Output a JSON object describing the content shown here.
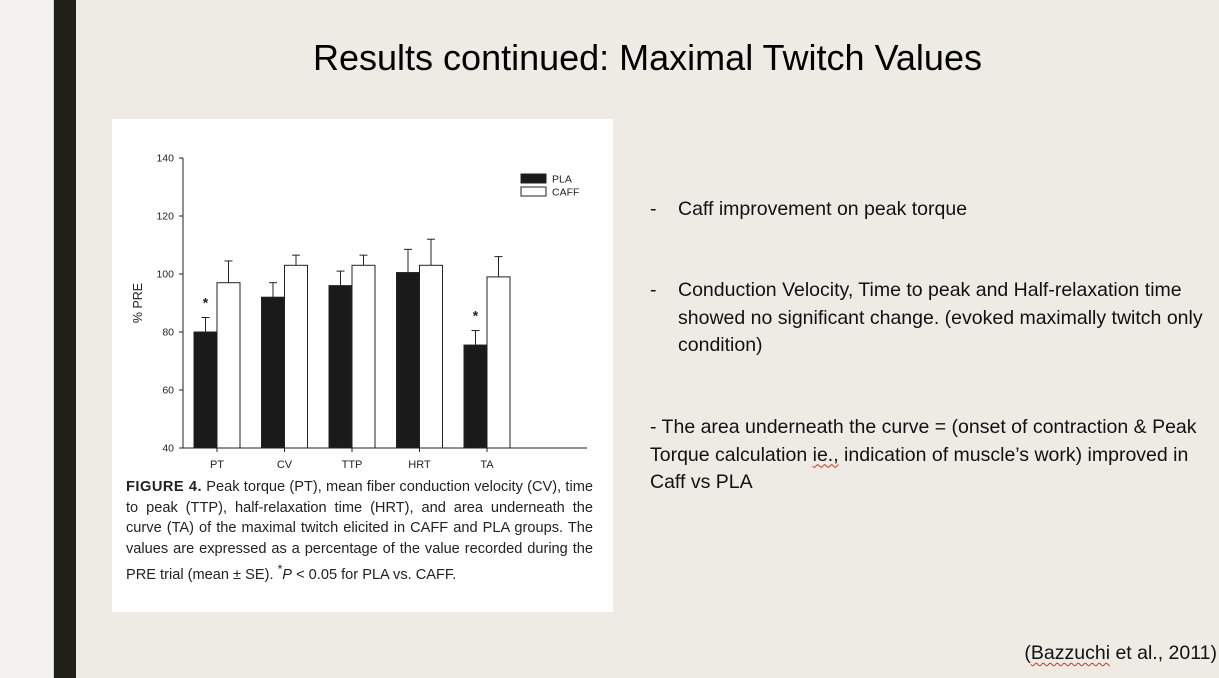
{
  "slide": {
    "title": "Results continued: Maximal Twitch Values",
    "citation_open": "(",
    "citation_author": "Bazzuchi",
    "citation_rest": " et al., 2011)"
  },
  "bullets": [
    {
      "dash": "-",
      "text": "Caff improvement on peak torque"
    },
    {
      "dash": "-",
      "text": "Conduction Velocity, Time to peak and Half-relaxation time showed no significant change. (evoked maximally twitch only condition)"
    }
  ],
  "bullet3": {
    "part1": "- The area underneath the curve = (onset of contraction & Peak Torque calculation ",
    "ie": "ie.,",
    "part2": "  indication of muscle’s work) improved in Caff vs PLA"
  },
  "figure_caption": {
    "label": "FIGURE 4.",
    "text": " Peak torque (PT), mean fiber conduction velocity (CV), time to peak (TTP), half-relaxation time (HRT), and area underneath the curve (TA) of the maximal twitch elicited in CAFF and PLA groups. The values are expressed as a percentage of the value recorded during the PRE trial (mean ± SE). ",
    "sup": "*",
    "p": "P",
    "tail": " < 0.05 for PLA vs. CAFF."
  },
  "chart_data": {
    "type": "bar",
    "ylabel": "% PRE",
    "ylim": [
      40,
      140
    ],
    "yticks": [
      40,
      60,
      80,
      100,
      120,
      140
    ],
    "categories": [
      "PT",
      "CV",
      "TTP",
      "HRT",
      "TA"
    ],
    "series": [
      {
        "name": "PLA",
        "color": "#1a1a1a",
        "values": [
          80,
          92,
          96,
          100.5,
          75.5
        ],
        "errors": [
          5,
          5,
          5,
          8,
          5
        ]
      },
      {
        "name": "CAFF",
        "color": "#ffffff",
        "values": [
          97,
          103,
          103,
          103,
          99
        ],
        "errors": [
          7.5,
          3.5,
          3.5,
          9,
          7
        ]
      }
    ],
    "significance": [
      "*",
      "",
      "",
      "",
      "*"
    ],
    "legend_position": "top-right"
  }
}
